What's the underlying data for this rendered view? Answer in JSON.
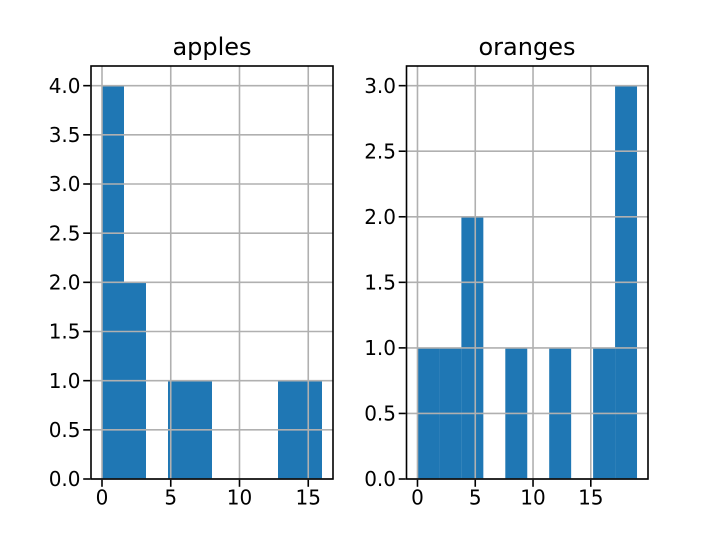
{
  "figure": {
    "background": "#ffffff",
    "bar_color": "#1f77b4",
    "grid_color": "#b0b0b0",
    "spine_color": "#000000",
    "text_color": "#000000"
  },
  "chart_data": [
    {
      "type": "bar",
      "chart_kind": "histogram",
      "title": "apples",
      "xlabel": "",
      "ylabel": "",
      "grid": true,
      "bin_edges": [
        0,
        1.6,
        3.2,
        4.8,
        6.4,
        8.0,
        9.6,
        11.2,
        12.8,
        14.4,
        16.0
      ],
      "values": [
        4,
        2,
        0,
        1,
        1,
        0,
        0,
        0,
        1,
        1
      ],
      "xlim": [
        -0.8,
        16.8
      ],
      "ylim": [
        0,
        4.2
      ],
      "xtick_values": [
        0,
        5,
        10,
        15
      ],
      "xtick_labels": [
        "0",
        "5",
        "10",
        "15"
      ],
      "ytick_values": [
        0,
        0.5,
        1,
        1.5,
        2,
        2.5,
        3,
        3.5,
        4
      ],
      "ytick_labels": [
        "0.0",
        "0.5",
        "1.0",
        "1.5",
        "2.0",
        "2.5",
        "3.0",
        "3.5",
        "4.0"
      ]
    },
    {
      "type": "bar",
      "chart_kind": "histogram",
      "title": "oranges",
      "xlabel": "",
      "ylabel": "",
      "grid": true,
      "bin_edges": [
        0,
        1.9,
        3.8,
        5.7,
        7.6,
        9.5,
        11.4,
        13.3,
        15.2,
        17.1,
        19.0
      ],
      "values": [
        1,
        1,
        2,
        0,
        1,
        0,
        1,
        0,
        1,
        3
      ],
      "xlim": [
        -0.95,
        19.95
      ],
      "ylim": [
        0,
        3.15
      ],
      "xtick_values": [
        0,
        5,
        10,
        15
      ],
      "xtick_labels": [
        "0",
        "5",
        "10",
        "15"
      ],
      "ytick_values": [
        0,
        0.5,
        1,
        1.5,
        2,
        2.5,
        3
      ],
      "ytick_labels": [
        "0.0",
        "0.5",
        "1.0",
        "1.5",
        "2.0",
        "2.5",
        "3.0"
      ]
    }
  ]
}
